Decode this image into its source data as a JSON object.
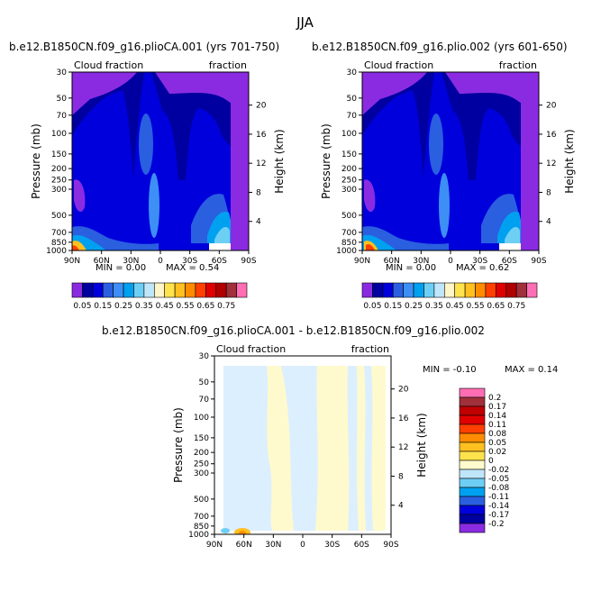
{
  "page": {
    "season": "JJA",
    "panel1_title": "b.e12.B1850CN.f09_g16.plioCA.001 (yrs 701-750)",
    "panel2_title": "b.e12.B1850CN.f09_g16.plio.002 (yrs 601-650)",
    "panel3_title": "b.e12.B1850CN.f09_g16.plioCA.001 - b.e12.B1850CN.f09_g16.plio.002"
  },
  "chart_data": [
    {
      "type": "heatmap",
      "name": "panel-1",
      "left_label": "Cloud fraction",
      "right_label": "fraction",
      "ylabel": "Pressure (mb)",
      "ylabel2": "Height (km)",
      "x_ticks": [
        "90N",
        "60N",
        "30N",
        "0",
        "30S",
        "60S",
        "90S"
      ],
      "x_range": [
        90,
        -90
      ],
      "y_ticks": [
        30,
        50,
        70,
        100,
        150,
        200,
        250,
        300,
        500,
        700,
        850,
        1000
      ],
      "y_range": [
        30,
        1000
      ],
      "height_ticks": [
        20,
        16,
        12,
        8,
        4
      ],
      "min_text": "MIN = 0.00",
      "max_text": "MAX = 0.54",
      "colorbar_labels": [
        "0.05",
        "0.15",
        "0.25",
        "0.35",
        "0.45",
        "0.55",
        "0.65",
        "0.75"
      ],
      "colorbar_colors": [
        "#8a2be2",
        "#0000a0",
        "#0000dc",
        "#2a5fe0",
        "#3d8ef5",
        "#00a0f0",
        "#6ecff5",
        "#bfe6fa",
        "#fff5c8",
        "#ffe34d",
        "#ffc020",
        "#ff8c00",
        "#ff4000",
        "#e00000",
        "#b00000",
        "#a0303a",
        "#ff6eb4"
      ]
    },
    {
      "type": "heatmap",
      "name": "panel-2",
      "left_label": "Cloud fraction",
      "right_label": "fraction",
      "ylabel": "Pressure (mb)",
      "ylabel2": "Height (km)",
      "x_ticks": [
        "90N",
        "60N",
        "30N",
        "0",
        "30S",
        "60S",
        "90S"
      ],
      "x_range": [
        90,
        -90
      ],
      "y_ticks": [
        30,
        50,
        70,
        100,
        150,
        200,
        250,
        300,
        500,
        700,
        850,
        1000
      ],
      "y_range": [
        30,
        1000
      ],
      "height_ticks": [
        20,
        16,
        12,
        8,
        4
      ],
      "min_text": "MIN = 0.00",
      "max_text": "MAX = 0.62",
      "colorbar_labels": [
        "0.05",
        "0.15",
        "0.25",
        "0.35",
        "0.45",
        "0.55",
        "0.65",
        "0.75"
      ],
      "colorbar_colors": [
        "#8a2be2",
        "#0000a0",
        "#0000dc",
        "#2a5fe0",
        "#3d8ef5",
        "#00a0f0",
        "#6ecff5",
        "#bfe6fa",
        "#fff5c8",
        "#ffe34d",
        "#ffc020",
        "#ff8c00",
        "#ff4000",
        "#e00000",
        "#b00000",
        "#a0303a",
        "#ff6eb4"
      ]
    },
    {
      "type": "heatmap",
      "name": "panel-diff",
      "left_label": "Cloud fraction",
      "right_label": "fraction",
      "ylabel": "Pressure (mb)",
      "ylabel2": "Height (km)",
      "x_ticks": [
        "90N",
        "60N",
        "30N",
        "0",
        "30S",
        "60S",
        "90S"
      ],
      "x_range": [
        90,
        -90
      ],
      "y_ticks": [
        30,
        50,
        70,
        100,
        150,
        200,
        250,
        300,
        500,
        700,
        850,
        1000
      ],
      "y_range": [
        30,
        1000
      ],
      "height_ticks": [
        20,
        16,
        12,
        8,
        4
      ],
      "min_text": "MIN = -0.10",
      "max_text": "MAX = 0.14",
      "colorbar_labels": [
        "0.2",
        "0.17",
        "0.14",
        "0.11",
        "0.08",
        "0.05",
        "0.02",
        "0",
        "-0.02",
        "-0.05",
        "-0.08",
        "-0.11",
        "-0.14",
        "-0.17",
        "-0.2"
      ],
      "colorbar_colors": [
        "#ff6eb4",
        "#a0303a",
        "#c00000",
        "#e00000",
        "#ff4000",
        "#ff8c00",
        "#ffc020",
        "#ffe34d",
        "#fffacd",
        "#bfe6fa",
        "#6ecff5",
        "#00a0f0",
        "#2a5fe0",
        "#0000dc",
        "#0000a0",
        "#8a2be2"
      ]
    }
  ]
}
